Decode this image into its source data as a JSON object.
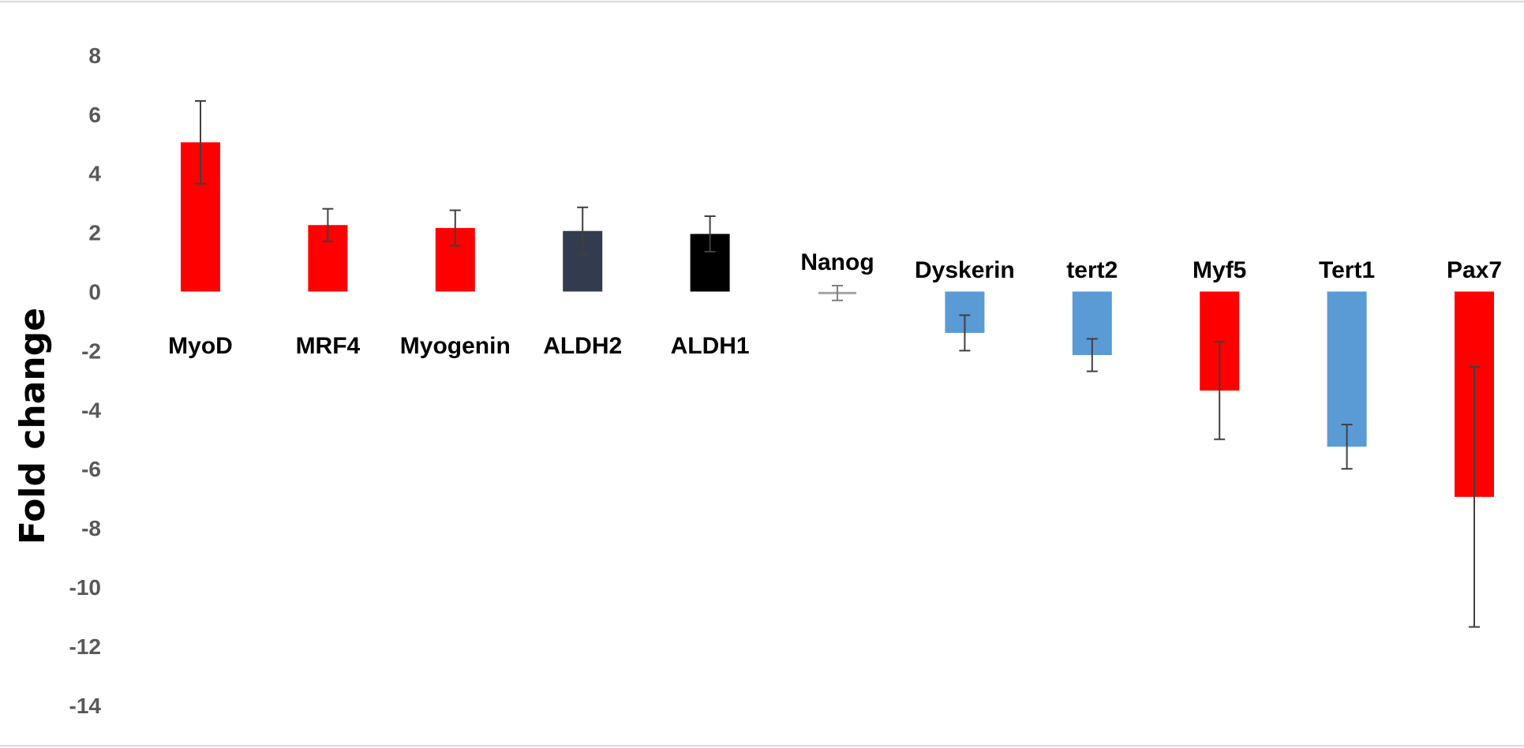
{
  "chart_data": {
    "type": "bar",
    "title": "",
    "xlabel": "",
    "ylabel": "Fold change",
    "ylim": [
      -14,
      8
    ],
    "yticks": [
      8,
      6,
      4,
      2,
      0,
      -2,
      -4,
      -6,
      -8,
      -10,
      -12,
      -14
    ],
    "grid": false,
    "categories": [
      "MyoD",
      "MRF4",
      "Myogenin",
      "ALDH2",
      "ALDH1",
      "Nanog",
      "Dyskerin",
      "tert2",
      "Myf5",
      "Tert1",
      "Pax7"
    ],
    "values": [
      5.05,
      2.25,
      2.15,
      2.05,
      1.95,
      -0.05,
      -1.4,
      -2.15,
      -3.35,
      -5.25,
      -6.95
    ],
    "errors": [
      1.4,
      0.55,
      0.6,
      0.8,
      0.6,
      0.25,
      0.6,
      0.55,
      1.65,
      0.75,
      4.4
    ],
    "colors": [
      "#ff0000",
      "#ff0000",
      "#ff0000",
      "#323c4e",
      "#000000",
      "#a6a6a6",
      "#5b9bd5",
      "#5b9bd5",
      "#ff0000",
      "#5b9bd5",
      "#ff0000"
    ],
    "error_bar_color": "#404040"
  }
}
